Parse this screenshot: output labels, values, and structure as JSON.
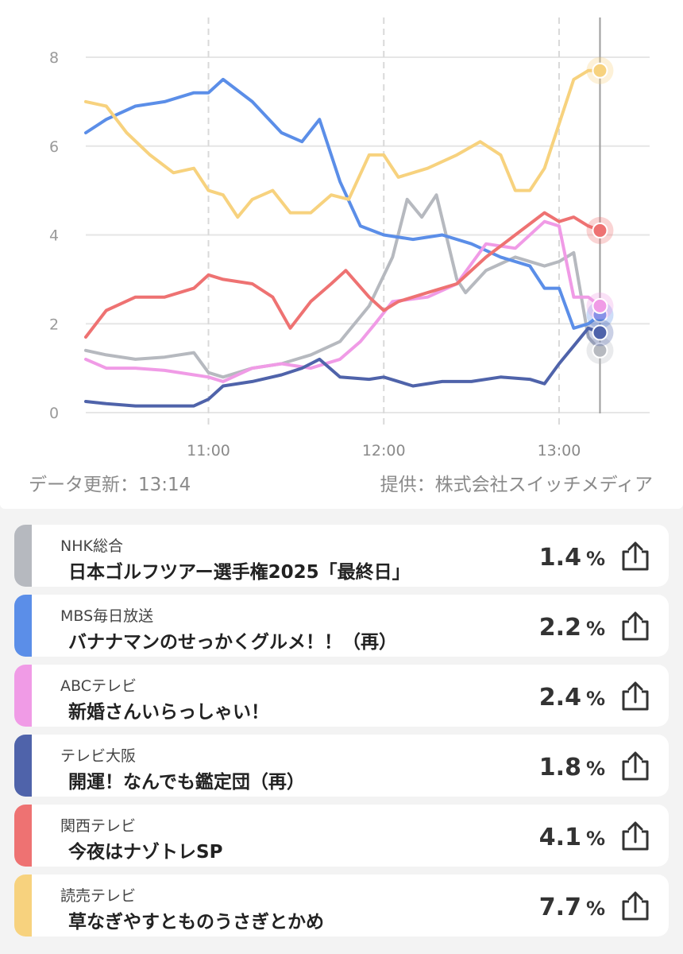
{
  "chart_data": {
    "type": "line",
    "y_ticks": [
      "0",
      "2",
      "4",
      "6",
      "8"
    ],
    "x_ticks": [
      "11:00",
      "12:00",
      "13:00"
    ],
    "ylim": [
      0,
      8
    ],
    "xlim": [
      "10:18",
      "13:14"
    ],
    "grid": "horizontal lines; dashed vertical lines at x ticks",
    "series": [
      {
        "name": "NHK総合",
        "color": "#b6b9bf",
        "points": [
          [
            "10:18",
            1.4
          ],
          [
            "10:25",
            1.3
          ],
          [
            "10:35",
            1.2
          ],
          [
            "10:45",
            1.25
          ],
          [
            "10:55",
            1.35
          ],
          [
            "11:00",
            0.9
          ],
          [
            "11:05",
            0.8
          ],
          [
            "11:15",
            1.0
          ],
          [
            "11:25",
            1.1
          ],
          [
            "11:35",
            1.3
          ],
          [
            "11:45",
            1.6
          ],
          [
            "11:55",
            2.4
          ],
          [
            "12:03",
            3.5
          ],
          [
            "12:08",
            4.8
          ],
          [
            "12:13",
            4.4
          ],
          [
            "12:18",
            4.9
          ],
          [
            "12:25",
            3.0
          ],
          [
            "12:28",
            2.7
          ],
          [
            "12:35",
            3.2
          ],
          [
            "12:45",
            3.5
          ],
          [
            "12:55",
            3.3
          ],
          [
            "13:00",
            3.4
          ],
          [
            "13:05",
            3.6
          ],
          [
            "13:10",
            1.7
          ],
          [
            "13:14",
            1.4
          ]
        ]
      },
      {
        "name": "MBS毎日放送",
        "color": "#5b8ee8",
        "points": [
          [
            "10:18",
            6.3
          ],
          [
            "10:25",
            6.6
          ],
          [
            "10:35",
            6.9
          ],
          [
            "10:45",
            7.0
          ],
          [
            "10:55",
            7.2
          ],
          [
            "11:00",
            7.2
          ],
          [
            "11:05",
            7.5
          ],
          [
            "11:15",
            7.0
          ],
          [
            "11:25",
            6.3
          ],
          [
            "11:32",
            6.1
          ],
          [
            "11:38",
            6.6
          ],
          [
            "11:45",
            5.2
          ],
          [
            "11:52",
            4.2
          ],
          [
            "12:00",
            4.0
          ],
          [
            "12:10",
            3.9
          ],
          [
            "12:20",
            4.0
          ],
          [
            "12:30",
            3.8
          ],
          [
            "12:40",
            3.5
          ],
          [
            "12:50",
            3.3
          ],
          [
            "12:55",
            2.8
          ],
          [
            "13:00",
            2.8
          ],
          [
            "13:05",
            1.9
          ],
          [
            "13:10",
            2.0
          ],
          [
            "13:14",
            2.2
          ]
        ]
      },
      {
        "name": "ABCテレビ",
        "color": "#f09be6",
        "points": [
          [
            "10:18",
            1.2
          ],
          [
            "10:25",
            1.0
          ],
          [
            "10:35",
            1.0
          ],
          [
            "10:45",
            0.95
          ],
          [
            "10:55",
            0.85
          ],
          [
            "11:00",
            0.8
          ],
          [
            "11:05",
            0.7
          ],
          [
            "11:15",
            1.0
          ],
          [
            "11:25",
            1.1
          ],
          [
            "11:35",
            1.0
          ],
          [
            "11:45",
            1.2
          ],
          [
            "11:52",
            1.6
          ],
          [
            "11:57",
            2.0
          ],
          [
            "12:03",
            2.5
          ],
          [
            "12:15",
            2.6
          ],
          [
            "12:25",
            2.9
          ],
          [
            "12:35",
            3.8
          ],
          [
            "12:45",
            3.7
          ],
          [
            "12:55",
            4.3
          ],
          [
            "13:00",
            4.2
          ],
          [
            "13:05",
            2.6
          ],
          [
            "13:10",
            2.6
          ],
          [
            "13:14",
            2.4
          ]
        ]
      },
      {
        "name": "テレビ大阪",
        "color": "#4f63aa",
        "points": [
          [
            "10:18",
            0.25
          ],
          [
            "10:25",
            0.2
          ],
          [
            "10:35",
            0.15
          ],
          [
            "10:45",
            0.15
          ],
          [
            "10:55",
            0.15
          ],
          [
            "11:00",
            0.3
          ],
          [
            "11:05",
            0.6
          ],
          [
            "11:15",
            0.7
          ],
          [
            "11:25",
            0.85
          ],
          [
            "11:32",
            1.0
          ],
          [
            "11:38",
            1.2
          ],
          [
            "11:45",
            0.8
          ],
          [
            "11:55",
            0.75
          ],
          [
            "12:00",
            0.8
          ],
          [
            "12:10",
            0.6
          ],
          [
            "12:20",
            0.7
          ],
          [
            "12:30",
            0.7
          ],
          [
            "12:40",
            0.8
          ],
          [
            "12:50",
            0.75
          ],
          [
            "12:55",
            0.65
          ],
          [
            "13:00",
            1.1
          ],
          [
            "13:05",
            1.5
          ],
          [
            "13:10",
            1.9
          ],
          [
            "13:14",
            1.8
          ]
        ]
      },
      {
        "name": "関西テレビ",
        "color": "#ee7272",
        "points": [
          [
            "10:18",
            1.7
          ],
          [
            "10:25",
            2.3
          ],
          [
            "10:35",
            2.6
          ],
          [
            "10:45",
            2.6
          ],
          [
            "10:55",
            2.8
          ],
          [
            "11:00",
            3.1
          ],
          [
            "11:05",
            3.0
          ],
          [
            "11:15",
            2.9
          ],
          [
            "11:22",
            2.6
          ],
          [
            "11:28",
            1.9
          ],
          [
            "11:35",
            2.5
          ],
          [
            "11:42",
            2.9
          ],
          [
            "11:47",
            3.2
          ],
          [
            "11:55",
            2.6
          ],
          [
            "12:00",
            2.3
          ],
          [
            "12:05",
            2.5
          ],
          [
            "12:15",
            2.7
          ],
          [
            "12:25",
            2.9
          ],
          [
            "12:35",
            3.5
          ],
          [
            "12:45",
            4.0
          ],
          [
            "12:55",
            4.5
          ],
          [
            "13:00",
            4.3
          ],
          [
            "13:05",
            4.4
          ],
          [
            "13:10",
            4.2
          ],
          [
            "13:14",
            4.1
          ]
        ]
      },
      {
        "name": "読売テレビ",
        "color": "#f7d27e",
        "points": [
          [
            "10:18",
            7.0
          ],
          [
            "10:25",
            6.9
          ],
          [
            "10:32",
            6.3
          ],
          [
            "10:40",
            5.8
          ],
          [
            "10:48",
            5.4
          ],
          [
            "10:55",
            5.5
          ],
          [
            "11:00",
            5.0
          ],
          [
            "11:05",
            4.9
          ],
          [
            "11:10",
            4.4
          ],
          [
            "11:15",
            4.8
          ],
          [
            "11:22",
            5.0
          ],
          [
            "11:28",
            4.5
          ],
          [
            "11:35",
            4.5
          ],
          [
            "11:42",
            4.9
          ],
          [
            "11:48",
            4.8
          ],
          [
            "11:55",
            5.8
          ],
          [
            "12:00",
            5.8
          ],
          [
            "12:05",
            5.3
          ],
          [
            "12:15",
            5.5
          ],
          [
            "12:25",
            5.8
          ],
          [
            "12:33",
            6.1
          ],
          [
            "12:40",
            5.8
          ],
          [
            "12:45",
            5.0
          ],
          [
            "12:50",
            5.0
          ],
          [
            "12:55",
            5.5
          ],
          [
            "13:00",
            6.5
          ],
          [
            "13:05",
            7.5
          ],
          [
            "13:10",
            7.7
          ],
          [
            "13:14",
            7.7
          ]
        ]
      }
    ]
  },
  "footer": {
    "updated": "データ更新：13:14",
    "provider": "提供：株式会社スイッチメディア"
  },
  "ratings": [
    {
      "channel": "NHK総合",
      "program": "日本ゴルフツアー選手権2025「最終日」",
      "rating": "1.4",
      "unit": "%",
      "color": "#b6b9bf"
    },
    {
      "channel": "MBS毎日放送",
      "program": "バナナマンのせっかくグルメ！！（再）",
      "rating": "2.2",
      "unit": "%",
      "color": "#5b8ee8"
    },
    {
      "channel": "ABCテレビ",
      "program": "新婚さんいらっしゃい！",
      "rating": "2.4",
      "unit": "%",
      "color": "#f09be6"
    },
    {
      "channel": "テレビ大阪",
      "program": "開運！なんでも鑑定団（再）",
      "rating": "1.8",
      "unit": "%",
      "color": "#4f63aa"
    },
    {
      "channel": "関西テレビ",
      "program": "今夜はナゾトレSP",
      "rating": "4.1",
      "unit": "%",
      "color": "#ee7272"
    },
    {
      "channel": "読売テレビ",
      "program": "草なぎやすとものうさぎとかめ",
      "rating": "7.7",
      "unit": "%",
      "color": "#f7d27e"
    }
  ]
}
